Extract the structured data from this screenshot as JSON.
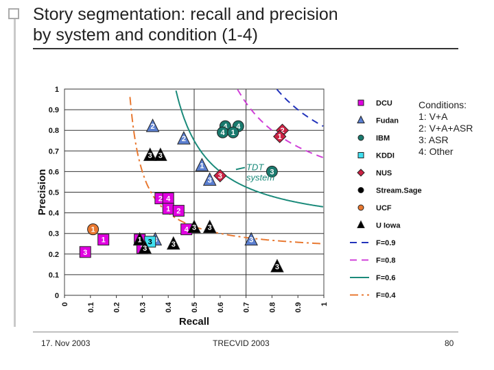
{
  "slide": {
    "title_line1": "Story segmentation: recall and precision",
    "title_line2": "by system and condition (1-4)",
    "footer_left": "17. Nov 2003",
    "footer_center": "TRECVID 2003",
    "footer_right": "80"
  },
  "conditions": {
    "heading": "Conditions:",
    "items": [
      "1: V+A",
      "2: V+A+ASR",
      "3: ASR",
      "4: Other"
    ]
  },
  "chart_data": {
    "type": "scatter",
    "xlabel": "Recall",
    "ylabel": "Precision",
    "xlim": [
      0,
      1
    ],
    "ylim": [
      0,
      1
    ],
    "x_ticks": [
      "0",
      "0.1",
      "0.2",
      "0.3",
      "0.4",
      "0.5",
      "0.6",
      "0.7",
      "0.8",
      "0.9",
      "1"
    ],
    "y_ticks": [
      "0",
      "0.1",
      "0.2",
      "0.3",
      "0.4",
      "0.5",
      "0.6",
      "0.7",
      "0.8",
      "0.9",
      "1"
    ],
    "grid": "vertical and horizontal lines at 0.5 and 0.7 recall, horizontal lines at 0.1 precision steps",
    "annotation": {
      "text": "TDT\nsystem",
      "x": 0.68,
      "y": 0.58,
      "points_to": [
        0.64,
        0.61
      ]
    },
    "legend": [
      {
        "label": "DCU",
        "marker": "square",
        "color": "#e000e0"
      },
      {
        "label": "Fudan",
        "marker": "triangle",
        "color": "#5b7fd0"
      },
      {
        "label": "IBM",
        "marker": "circle",
        "color": "#1a7a6e"
      },
      {
        "label": "KDDI",
        "marker": "square",
        "color": "#40e0f0"
      },
      {
        "label": "NUS",
        "marker": "diamond",
        "color": "#cc2244"
      },
      {
        "label": "Stream.Sage",
        "marker": "circle",
        "color": "#000000"
      },
      {
        "label": "UCF",
        "marker": "circle",
        "color": "#e87830"
      },
      {
        "label": "U Iowa",
        "marker": "triangle",
        "color": "#000000"
      },
      {
        "label": "F=0.9",
        "line": "dashed",
        "color": "#2233bb"
      },
      {
        "label": "F=0.8",
        "line": "dashed",
        "color": "#d040d8"
      },
      {
        "label": "F=0.6",
        "line": "solid",
        "color": "#1a8a7a"
      },
      {
        "label": "F=0.4",
        "line": "dashdot",
        "color": "#e87830"
      }
    ],
    "legend_placement": "right",
    "f_curves": [
      {
        "name": "F=0.9",
        "f": 0.9,
        "color": "#2233bb",
        "style": "dashed"
      },
      {
        "name": "F=0.8",
        "f": 0.8,
        "color": "#d040d8",
        "style": "dashed"
      },
      {
        "name": "F=0.6",
        "f": 0.6,
        "color": "#1a8a7a",
        "style": "solid"
      },
      {
        "name": "F=0.4",
        "f": 0.4,
        "color": "#e87830",
        "style": "dashdot"
      }
    ],
    "points": [
      {
        "system": "DCU",
        "condition": "3",
        "x": 0.08,
        "y": 0.21
      },
      {
        "system": "DCU",
        "condition": "2",
        "x": 0.37,
        "y": 0.47
      },
      {
        "system": "DCU",
        "condition": "4",
        "x": 0.4,
        "y": 0.47
      },
      {
        "system": "DCU",
        "condition": "1",
        "x": 0.4,
        "y": 0.42
      },
      {
        "system": "DCU",
        "condition": "2",
        "x": 0.44,
        "y": 0.41
      },
      {
        "system": "DCU",
        "condition": "4",
        "x": 0.47,
        "y": 0.32
      },
      {
        "system": "DCU",
        "condition": "1",
        "x": 0.15,
        "y": 0.27
      },
      {
        "system": "DCU",
        "condition": "4",
        "x": 0.29,
        "y": 0.27
      },
      {
        "system": "DCU",
        "condition": "3",
        "x": 0.3,
        "y": 0.23
      },
      {
        "system": "Fudan",
        "condition": "2",
        "x": 0.34,
        "y": 0.82
      },
      {
        "system": "Fudan",
        "condition": "2",
        "x": 0.46,
        "y": 0.76
      },
      {
        "system": "Fudan",
        "condition": "1",
        "x": 0.53,
        "y": 0.63
      },
      {
        "system": "Fudan",
        "condition": "3",
        "x": 0.56,
        "y": 0.56
      },
      {
        "system": "Fudan",
        "condition": "3",
        "x": 0.72,
        "y": 0.27
      },
      {
        "system": "Fudan",
        "condition": "3",
        "x": 0.35,
        "y": 0.27
      },
      {
        "system": "IBM",
        "condition": "4",
        "x": 0.62,
        "y": 0.82
      },
      {
        "system": "IBM",
        "condition": "4",
        "x": 0.67,
        "y": 0.82
      },
      {
        "system": "IBM",
        "condition": "4",
        "x": 0.61,
        "y": 0.79
      },
      {
        "system": "IBM",
        "condition": "1",
        "x": 0.65,
        "y": 0.79
      },
      {
        "system": "IBM",
        "condition": "3",
        "x": 0.8,
        "y": 0.6
      },
      {
        "system": "KDDI",
        "condition": "3",
        "x": 0.33,
        "y": 0.26
      },
      {
        "system": "NUS",
        "condition": "2",
        "x": 0.84,
        "y": 0.8
      },
      {
        "system": "NUS",
        "condition": "1",
        "x": 0.83,
        "y": 0.77
      },
      {
        "system": "NUS",
        "condition": "3",
        "x": 0.6,
        "y": 0.58
      },
      {
        "system": "U Iowa",
        "condition": "3",
        "x": 0.33,
        "y": 0.68
      },
      {
        "system": "U Iowa",
        "condition": "3",
        "x": 0.37,
        "y": 0.68
      },
      {
        "system": "U Iowa",
        "condition": "1",
        "x": 0.29,
        "y": 0.27
      },
      {
        "system": "U Iowa",
        "condition": "3",
        "x": 0.31,
        "y": 0.23
      },
      {
        "system": "U Iowa",
        "condition": "3",
        "x": 0.42,
        "y": 0.25
      },
      {
        "system": "U Iowa",
        "condition": "3",
        "x": 0.5,
        "y": 0.33
      },
      {
        "system": "U Iowa",
        "condition": "3",
        "x": 0.56,
        "y": 0.33
      },
      {
        "system": "U Iowa",
        "condition": "3",
        "x": 0.82,
        "y": 0.14
      },
      {
        "system": "UCF",
        "condition": "1",
        "x": 0.11,
        "y": 0.32
      }
    ]
  }
}
